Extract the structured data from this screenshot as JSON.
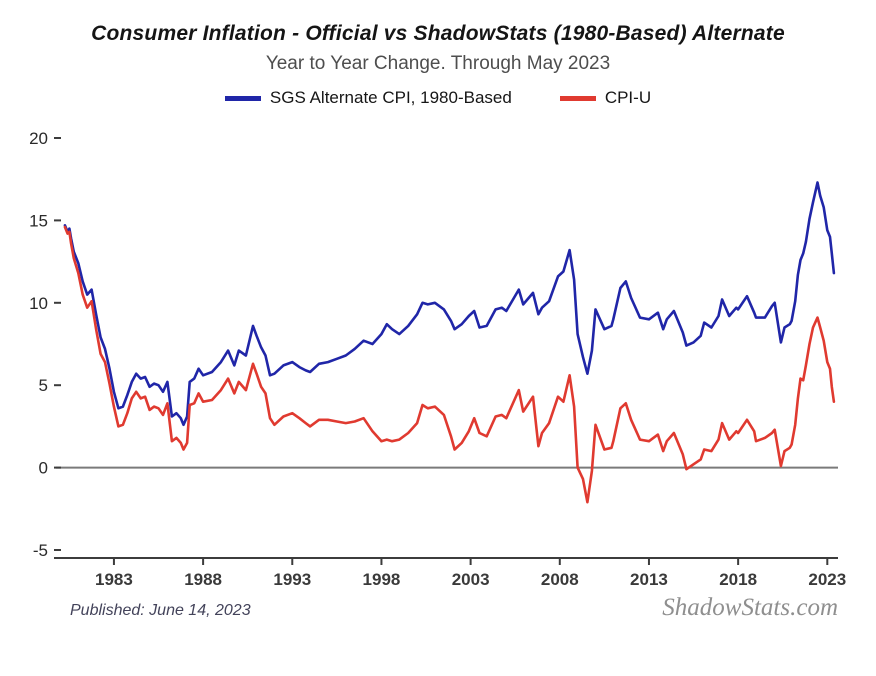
{
  "header": {
    "title": "Consumer Inflation - Official vs ShadowStats (1980-Based) Alternate",
    "subtitle": "Year to Year Change. Through May 2023"
  },
  "footer": {
    "published": "Published: June 14, 2023",
    "watermark": "ShadowStats.com"
  },
  "chart_data": {
    "type": "line",
    "title": "Consumer Inflation - Official vs ShadowStats (1980-Based) Alternate",
    "subtitle": "Year to Year Change. Through May 2023",
    "xlim": [
      1980.2,
      2023.6
    ],
    "ylim": [
      -5,
      20
    ],
    "y_ticks": [
      20,
      15,
      10,
      5,
      0,
      -5
    ],
    "x_ticks": [
      1983,
      1988,
      1993,
      1998,
      2003,
      2008,
      2013,
      2018,
      2023
    ],
    "grid": "off",
    "legend_position": "top",
    "colors": {
      "sgs": "#2026a8",
      "cpiu": "#e03a30",
      "zero_line": "#7a7a7a",
      "axis": "#3c3c3c"
    },
    "legend": [
      {
        "name": "SGS Alternate CPI, 1980-Based",
        "color": "#2026a8"
      },
      {
        "name": "CPI-U",
        "color": "#e03a30"
      }
    ],
    "series": [
      {
        "name": "SGS Alternate CPI, 1980-Based",
        "color": "#2026a8",
        "points": [
          [
            1980.25,
            14.7
          ],
          [
            1980.4,
            14.3
          ],
          [
            1980.5,
            14.5
          ],
          [
            1980.6,
            13.9
          ],
          [
            1980.75,
            13.1
          ],
          [
            1981.0,
            12.4
          ],
          [
            1981.25,
            11.3
          ],
          [
            1981.5,
            10.5
          ],
          [
            1981.75,
            10.8
          ],
          [
            1982.0,
            9.3
          ],
          [
            1982.25,
            7.9
          ],
          [
            1982.5,
            7.2
          ],
          [
            1982.75,
            6.0
          ],
          [
            1983.0,
            4.6
          ],
          [
            1983.25,
            3.6
          ],
          [
            1983.5,
            3.7
          ],
          [
            1983.75,
            4.4
          ],
          [
            1984.0,
            5.2
          ],
          [
            1984.25,
            5.7
          ],
          [
            1984.5,
            5.4
          ],
          [
            1984.75,
            5.5
          ],
          [
            1985.0,
            4.9
          ],
          [
            1985.25,
            5.1
          ],
          [
            1985.5,
            5.0
          ],
          [
            1985.75,
            4.6
          ],
          [
            1986.0,
            5.2
          ],
          [
            1986.25,
            3.1
          ],
          [
            1986.5,
            3.3
          ],
          [
            1986.75,
            3.0
          ],
          [
            1986.9,
            2.6
          ],
          [
            1987.1,
            3.1
          ],
          [
            1987.25,
            5.2
          ],
          [
            1987.5,
            5.4
          ],
          [
            1987.75,
            6.0
          ],
          [
            1988.0,
            5.6
          ],
          [
            1988.5,
            5.8
          ],
          [
            1989.0,
            6.4
          ],
          [
            1989.4,
            7.1
          ],
          [
            1989.75,
            6.2
          ],
          [
            1990.0,
            7.1
          ],
          [
            1990.4,
            6.8
          ],
          [
            1990.8,
            8.6
          ],
          [
            1991.0,
            8.0
          ],
          [
            1991.25,
            7.3
          ],
          [
            1991.5,
            6.8
          ],
          [
            1991.75,
            5.6
          ],
          [
            1992.0,
            5.7
          ],
          [
            1992.5,
            6.2
          ],
          [
            1993.0,
            6.4
          ],
          [
            1993.4,
            6.1
          ],
          [
            1993.75,
            5.9
          ],
          [
            1994.0,
            5.8
          ],
          [
            1994.5,
            6.3
          ],
          [
            1995.0,
            6.4
          ],
          [
            1995.5,
            6.6
          ],
          [
            1996.0,
            6.8
          ],
          [
            1996.5,
            7.2
          ],
          [
            1997.0,
            7.7
          ],
          [
            1997.5,
            7.5
          ],
          [
            1998.0,
            8.1
          ],
          [
            1998.3,
            8.7
          ],
          [
            1998.6,
            8.4
          ],
          [
            1999.0,
            8.1
          ],
          [
            1999.5,
            8.6
          ],
          [
            2000.0,
            9.3
          ],
          [
            2000.3,
            10.0
          ],
          [
            2000.6,
            9.9
          ],
          [
            2001.0,
            10.0
          ],
          [
            2001.5,
            9.6
          ],
          [
            2001.9,
            8.9
          ],
          [
            2002.1,
            8.4
          ],
          [
            2002.5,
            8.7
          ],
          [
            2002.9,
            9.2
          ],
          [
            2003.2,
            9.5
          ],
          [
            2003.5,
            8.5
          ],
          [
            2003.9,
            8.6
          ],
          [
            2004.4,
            9.6
          ],
          [
            2004.75,
            9.7
          ],
          [
            2005.0,
            9.5
          ],
          [
            2005.7,
            10.8
          ],
          [
            2005.95,
            9.9
          ],
          [
            2006.5,
            10.6
          ],
          [
            2006.8,
            9.3
          ],
          [
            2007.0,
            9.7
          ],
          [
            2007.4,
            10.1
          ],
          [
            2007.9,
            11.6
          ],
          [
            2008.2,
            11.9
          ],
          [
            2008.55,
            13.2
          ],
          [
            2008.8,
            11.4
          ],
          [
            2009.0,
            8.1
          ],
          [
            2009.3,
            6.7
          ],
          [
            2009.55,
            5.7
          ],
          [
            2009.8,
            7.1
          ],
          [
            2010.0,
            9.6
          ],
          [
            2010.5,
            8.4
          ],
          [
            2010.9,
            8.6
          ],
          [
            2011.0,
            9.0
          ],
          [
            2011.4,
            10.9
          ],
          [
            2011.7,
            11.3
          ],
          [
            2012.0,
            10.3
          ],
          [
            2012.5,
            9.1
          ],
          [
            2013.0,
            9.0
          ],
          [
            2013.5,
            9.4
          ],
          [
            2013.8,
            8.4
          ],
          [
            2014.0,
            9.0
          ],
          [
            2014.4,
            9.5
          ],
          [
            2014.9,
            8.2
          ],
          [
            2015.1,
            7.4
          ],
          [
            2015.5,
            7.6
          ],
          [
            2015.9,
            8.0
          ],
          [
            2016.1,
            8.8
          ],
          [
            2016.5,
            8.5
          ],
          [
            2016.9,
            9.2
          ],
          [
            2017.1,
            10.2
          ],
          [
            2017.5,
            9.2
          ],
          [
            2017.9,
            9.7
          ],
          [
            2018.0,
            9.6
          ],
          [
            2018.5,
            10.4
          ],
          [
            2018.9,
            9.4
          ],
          [
            2019.0,
            9.1
          ],
          [
            2019.5,
            9.1
          ],
          [
            2019.9,
            9.8
          ],
          [
            2020.05,
            10.0
          ],
          [
            2020.4,
            7.6
          ],
          [
            2020.6,
            8.5
          ],
          [
            2020.9,
            8.7
          ],
          [
            2021.0,
            8.9
          ],
          [
            2021.2,
            10.1
          ],
          [
            2021.35,
            11.7
          ],
          [
            2021.5,
            12.6
          ],
          [
            2021.65,
            13.0
          ],
          [
            2021.8,
            13.7
          ],
          [
            2022.0,
            15.1
          ],
          [
            2022.2,
            16.1
          ],
          [
            2022.45,
            17.3
          ],
          [
            2022.6,
            16.5
          ],
          [
            2022.8,
            15.8
          ],
          [
            2023.0,
            14.4
          ],
          [
            2023.15,
            14.0
          ],
          [
            2023.25,
            13.0
          ],
          [
            2023.37,
            11.8
          ]
        ]
      },
      {
        "name": "CPI-U",
        "color": "#e03a30",
        "points": [
          [
            1980.25,
            14.6
          ],
          [
            1980.4,
            14.2
          ],
          [
            1980.5,
            14.3
          ],
          [
            1980.6,
            13.6
          ],
          [
            1980.75,
            12.7
          ],
          [
            1981.0,
            11.8
          ],
          [
            1981.25,
            10.5
          ],
          [
            1981.5,
            9.7
          ],
          [
            1981.75,
            10.1
          ],
          [
            1982.0,
            8.4
          ],
          [
            1982.25,
            6.9
          ],
          [
            1982.5,
            6.4
          ],
          [
            1982.75,
            5.1
          ],
          [
            1983.0,
            3.7
          ],
          [
            1983.25,
            2.5
          ],
          [
            1983.5,
            2.6
          ],
          [
            1983.75,
            3.3
          ],
          [
            1984.0,
            4.2
          ],
          [
            1984.25,
            4.6
          ],
          [
            1984.5,
            4.2
          ],
          [
            1984.75,
            4.3
          ],
          [
            1985.0,
            3.5
          ],
          [
            1985.25,
            3.7
          ],
          [
            1985.5,
            3.6
          ],
          [
            1985.75,
            3.2
          ],
          [
            1986.0,
            3.9
          ],
          [
            1986.25,
            1.6
          ],
          [
            1986.5,
            1.8
          ],
          [
            1986.75,
            1.5
          ],
          [
            1986.9,
            1.1
          ],
          [
            1987.1,
            1.5
          ],
          [
            1987.25,
            3.8
          ],
          [
            1987.5,
            3.9
          ],
          [
            1987.75,
            4.5
          ],
          [
            1988.0,
            4.0
          ],
          [
            1988.5,
            4.1
          ],
          [
            1989.0,
            4.7
          ],
          [
            1989.4,
            5.4
          ],
          [
            1989.75,
            4.5
          ],
          [
            1990.0,
            5.2
          ],
          [
            1990.4,
            4.7
          ],
          [
            1990.8,
            6.3
          ],
          [
            1991.0,
            5.7
          ],
          [
            1991.25,
            4.9
          ],
          [
            1991.5,
            4.5
          ],
          [
            1991.75,
            3.0
          ],
          [
            1992.0,
            2.6
          ],
          [
            1992.5,
            3.1
          ],
          [
            1993.0,
            3.3
          ],
          [
            1993.4,
            3.0
          ],
          [
            1993.75,
            2.7
          ],
          [
            1994.0,
            2.5
          ],
          [
            1994.5,
            2.9
          ],
          [
            1995.0,
            2.9
          ],
          [
            1995.5,
            2.8
          ],
          [
            1996.0,
            2.7
          ],
          [
            1996.5,
            2.8
          ],
          [
            1997.0,
            3.0
          ],
          [
            1997.5,
            2.2
          ],
          [
            1998.0,
            1.6
          ],
          [
            1998.3,
            1.7
          ],
          [
            1998.6,
            1.6
          ],
          [
            1999.0,
            1.7
          ],
          [
            1999.5,
            2.1
          ],
          [
            2000.0,
            2.7
          ],
          [
            2000.3,
            3.8
          ],
          [
            2000.6,
            3.6
          ],
          [
            2001.0,
            3.7
          ],
          [
            2001.5,
            3.2
          ],
          [
            2001.9,
            1.9
          ],
          [
            2002.1,
            1.1
          ],
          [
            2002.5,
            1.5
          ],
          [
            2002.9,
            2.2
          ],
          [
            2003.2,
            3.0
          ],
          [
            2003.5,
            2.1
          ],
          [
            2003.9,
            1.9
          ],
          [
            2004.4,
            3.1
          ],
          [
            2004.75,
            3.2
          ],
          [
            2005.0,
            3.0
          ],
          [
            2005.7,
            4.7
          ],
          [
            2005.95,
            3.4
          ],
          [
            2006.5,
            4.3
          ],
          [
            2006.8,
            1.3
          ],
          [
            2007.0,
            2.1
          ],
          [
            2007.4,
            2.7
          ],
          [
            2007.9,
            4.3
          ],
          [
            2008.2,
            4.0
          ],
          [
            2008.55,
            5.6
          ],
          [
            2008.8,
            3.7
          ],
          [
            2009.0,
            0.0
          ],
          [
            2009.3,
            -0.7
          ],
          [
            2009.55,
            -2.1
          ],
          [
            2009.8,
            -0.2
          ],
          [
            2010.0,
            2.6
          ],
          [
            2010.5,
            1.1
          ],
          [
            2010.9,
            1.2
          ],
          [
            2011.0,
            1.6
          ],
          [
            2011.4,
            3.6
          ],
          [
            2011.7,
            3.9
          ],
          [
            2012.0,
            2.9
          ],
          [
            2012.5,
            1.7
          ],
          [
            2013.0,
            1.6
          ],
          [
            2013.5,
            2.0
          ],
          [
            2013.8,
            1.0
          ],
          [
            2014.0,
            1.6
          ],
          [
            2014.4,
            2.1
          ],
          [
            2014.9,
            0.8
          ],
          [
            2015.1,
            -0.1
          ],
          [
            2015.5,
            0.2
          ],
          [
            2015.9,
            0.5
          ],
          [
            2016.1,
            1.1
          ],
          [
            2016.5,
            1.0
          ],
          [
            2016.9,
            1.7
          ],
          [
            2017.1,
            2.7
          ],
          [
            2017.5,
            1.7
          ],
          [
            2017.9,
            2.2
          ],
          [
            2018.0,
            2.1
          ],
          [
            2018.5,
            2.9
          ],
          [
            2018.9,
            2.2
          ],
          [
            2019.0,
            1.6
          ],
          [
            2019.5,
            1.8
          ],
          [
            2019.9,
            2.1
          ],
          [
            2020.05,
            2.3
          ],
          [
            2020.4,
            0.1
          ],
          [
            2020.6,
            1.0
          ],
          [
            2020.9,
            1.2
          ],
          [
            2021.0,
            1.4
          ],
          [
            2021.2,
            2.6
          ],
          [
            2021.35,
            4.2
          ],
          [
            2021.5,
            5.4
          ],
          [
            2021.65,
            5.3
          ],
          [
            2021.8,
            6.2
          ],
          [
            2022.0,
            7.5
          ],
          [
            2022.2,
            8.5
          ],
          [
            2022.45,
            9.1
          ],
          [
            2022.6,
            8.5
          ],
          [
            2022.8,
            7.7
          ],
          [
            2023.0,
            6.4
          ],
          [
            2023.15,
            6.0
          ],
          [
            2023.25,
            4.9
          ],
          [
            2023.37,
            4.0
          ]
        ]
      }
    ]
  }
}
